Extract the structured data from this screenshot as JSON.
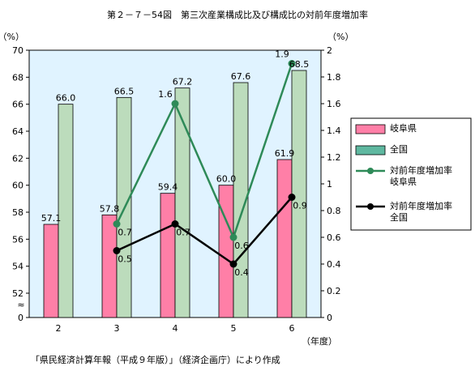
{
  "title": "第２－７－54図　第三次産業構成比及び構成比の対前年度増加率",
  "source": "「県民経済計算年報（平成９年版）」（経済企画庁）により作成",
  "chart_data": {
    "type": "bar",
    "title": "第２－７－54図　第三次産業構成比及び構成比の対前年度増加率",
    "categories": [
      "2",
      "3",
      "4",
      "5",
      "6"
    ],
    "xlabel": "（年度）",
    "ylabel_left": "（%）",
    "ylabel_right": "（%）",
    "ylim_left": [
      50,
      70
    ],
    "yticks_left": [
      0,
      52,
      54,
      56,
      58,
      60,
      62,
      64,
      66,
      68,
      70
    ],
    "axis_break_left": "≈",
    "ylim_right": [
      0,
      2
    ],
    "yticks_right": [
      0,
      0.2,
      0.4,
      0.6,
      0.8,
      1,
      1.2,
      1.4,
      1.6,
      1.8,
      2
    ],
    "series": [
      {
        "name": "岐阜県",
        "kind": "bar",
        "axis": "left",
        "color": "#ff7fa7",
        "values": [
          57.1,
          57.8,
          59.4,
          60.0,
          61.9
        ],
        "labels": [
          "57.1",
          "57.8",
          "59.4",
          "60.0",
          "61.9"
        ]
      },
      {
        "name": "全国",
        "kind": "bar",
        "axis": "left",
        "color": "#bcdcbc",
        "values": [
          66.0,
          66.5,
          67.2,
          67.6,
          68.5
        ],
        "labels": [
          "66.0",
          "66.5",
          "67.2",
          "67.6",
          "68.5"
        ]
      },
      {
        "name": "対前年度増加率 岐阜県",
        "kind": "line",
        "axis": "right",
        "color": "#2e8a58",
        "values": [
          null,
          0.7,
          1.6,
          0.6,
          1.9
        ],
        "labels": [
          "",
          "0.7",
          "1.6",
          "0.6",
          "1.9"
        ]
      },
      {
        "name": "対前年度増加率 全国",
        "kind": "line",
        "axis": "right",
        "color": "#000000",
        "values": [
          null,
          0.5,
          0.7,
          0.4,
          0.9
        ],
        "labels": [
          "",
          "0.5",
          "0.7",
          "0.4",
          "0.9"
        ]
      }
    ],
    "plot_background": "#e0f3ff",
    "grid": false,
    "legend_position": "right",
    "legend": [
      {
        "lines": [
          "岐阜県"
        ],
        "symbol": "bar",
        "color": "#ff7fa7"
      },
      {
        "lines": [
          "全国"
        ],
        "symbol": "bar",
        "color": "#5fb8a0"
      },
      {
        "lines": [
          "対前年度増加率",
          "岐阜県"
        ],
        "symbol": "line",
        "color": "#2e8a58"
      },
      {
        "lines": [
          "対前年度増加率",
          "全国"
        ],
        "symbol": "line",
        "color": "#000000"
      }
    ]
  }
}
